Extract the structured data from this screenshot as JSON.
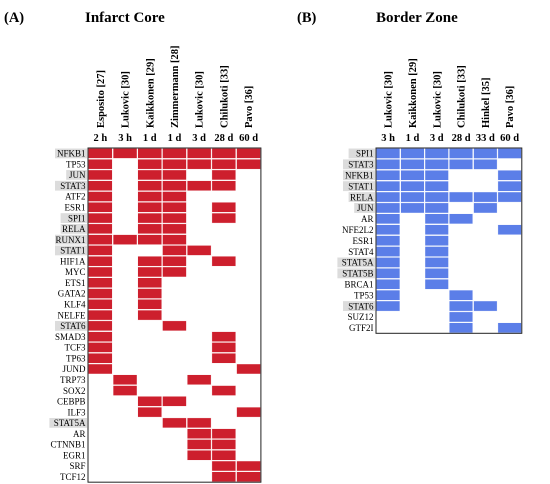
{
  "chart_data": [
    {
      "type": "heatmap",
      "panel": "(A)",
      "title": "Infarct Core",
      "color": "#cd1f2d",
      "rows": [
        "NFKB1",
        "TP53",
        "JUN",
        "STAT3",
        "ATF2",
        "ESR1",
        "SPI1",
        "RELA",
        "RUNX1",
        "STAT1",
        "HIF1A",
        "MYC",
        "ETS1",
        "GATA2",
        "KLF4",
        "NELFE",
        "STAT6",
        "SMAD3",
        "TCF3",
        "TP63",
        "JUND",
        "TRP73",
        "SOX2",
        "CEBPB",
        "ILF3",
        "STAT5A",
        "AR",
        "CTNNB1",
        "EGR1",
        "SRF",
        "TCF12"
      ],
      "highlighted_rows": [
        "NFKB1",
        "JUN",
        "STAT3",
        "SPI1",
        "RELA",
        "RUNX1",
        "STAT1",
        "STAT6",
        "STAT5A"
      ],
      "columns": [
        {
          "study": "Esposito [27]",
          "time": "2 h"
        },
        {
          "study": "Lukovic [30]",
          "time": "3 h"
        },
        {
          "study": "Kaikkonen [29]",
          "time": "1 d"
        },
        {
          "study": "Zimmermann [28]",
          "time": "1 d"
        },
        {
          "study": "Lukovic [30]",
          "time": "3 d"
        },
        {
          "study": "Chilukoti [33]",
          "time": "28 d"
        },
        {
          "study": "Pavo [36]",
          "time": "60 d"
        }
      ],
      "matrix": [
        [
          1,
          1,
          1,
          1,
          1,
          1,
          1
        ],
        [
          1,
          0,
          1,
          1,
          1,
          1,
          1
        ],
        [
          1,
          0,
          1,
          1,
          0,
          1,
          0
        ],
        [
          1,
          0,
          1,
          1,
          1,
          1,
          0
        ],
        [
          1,
          0,
          1,
          1,
          0,
          0,
          0
        ],
        [
          1,
          0,
          1,
          1,
          0,
          1,
          0
        ],
        [
          1,
          0,
          1,
          1,
          0,
          1,
          0
        ],
        [
          1,
          0,
          1,
          1,
          0,
          0,
          0
        ],
        [
          1,
          1,
          1,
          1,
          0,
          0,
          0
        ],
        [
          1,
          0,
          0,
          1,
          1,
          0,
          0
        ],
        [
          1,
          0,
          1,
          1,
          0,
          1,
          0
        ],
        [
          1,
          0,
          1,
          1,
          0,
          0,
          0
        ],
        [
          1,
          0,
          1,
          0,
          0,
          0,
          0
        ],
        [
          1,
          0,
          1,
          0,
          0,
          0,
          0
        ],
        [
          1,
          0,
          1,
          0,
          0,
          0,
          0
        ],
        [
          1,
          0,
          1,
          0,
          0,
          0,
          0
        ],
        [
          1,
          0,
          0,
          1,
          0,
          0,
          0
        ],
        [
          1,
          0,
          0,
          0,
          0,
          1,
          0
        ],
        [
          1,
          0,
          0,
          0,
          0,
          1,
          0
        ],
        [
          1,
          0,
          0,
          0,
          0,
          1,
          0
        ],
        [
          1,
          0,
          0,
          0,
          0,
          0,
          1
        ],
        [
          0,
          1,
          0,
          0,
          1,
          0,
          0
        ],
        [
          0,
          1,
          0,
          0,
          0,
          1,
          0
        ],
        [
          0,
          0,
          1,
          1,
          0,
          0,
          0
        ],
        [
          0,
          0,
          1,
          0,
          0,
          0,
          1
        ],
        [
          0,
          0,
          0,
          1,
          1,
          0,
          0
        ],
        [
          0,
          0,
          0,
          0,
          1,
          1,
          0
        ],
        [
          0,
          0,
          0,
          0,
          1,
          1,
          0
        ],
        [
          0,
          0,
          0,
          0,
          1,
          1,
          0
        ],
        [
          0,
          0,
          0,
          0,
          0,
          1,
          1
        ],
        [
          0,
          0,
          0,
          0,
          0,
          1,
          1
        ]
      ]
    },
    {
      "type": "heatmap",
      "panel": "(B)",
      "title": "Border Zone",
      "color": "#5b7ee8",
      "rows": [
        "SPI1",
        "STAT3",
        "NFKB1",
        "STAT1",
        "RELA",
        "JUN",
        "AR",
        "NFE2L2",
        "ESR1",
        "STAT4",
        "STAT5A",
        "STAT5B",
        "BRCA1",
        "TP53",
        "STAT6",
        "SUZ12",
        "GTF2I"
      ],
      "highlighted_rows": [
        "SPI1",
        "STAT3",
        "NFKB1",
        "STAT1",
        "RELA",
        "JUN",
        "STAT5A",
        "STAT5B",
        "STAT6"
      ],
      "columns": [
        {
          "study": "Lukovic [30]",
          "time": "3 h"
        },
        {
          "study": "Kaikkonen [29]",
          "time": "1 d"
        },
        {
          "study": "Lukovic [30]",
          "time": "3 d"
        },
        {
          "study": "Chilukoti [33]",
          "time": "28 d"
        },
        {
          "study": "Hinkel [35]",
          "time": "33 d"
        },
        {
          "study": "Pavo [36]",
          "time": "60 d"
        }
      ],
      "matrix": [
        [
          1,
          1,
          1,
          1,
          1,
          1
        ],
        [
          1,
          1,
          1,
          1,
          1,
          0
        ],
        [
          1,
          1,
          1,
          0,
          0,
          1
        ],
        [
          1,
          1,
          1,
          0,
          0,
          1
        ],
        [
          1,
          1,
          1,
          1,
          1,
          1
        ],
        [
          1,
          1,
          1,
          0,
          1,
          0
        ],
        [
          1,
          0,
          1,
          1,
          0,
          0
        ],
        [
          1,
          0,
          1,
          0,
          0,
          1
        ],
        [
          1,
          0,
          1,
          0,
          0,
          0
        ],
        [
          1,
          0,
          1,
          0,
          0,
          0
        ],
        [
          1,
          0,
          1,
          0,
          0,
          0
        ],
        [
          1,
          0,
          1,
          0,
          0,
          0
        ],
        [
          1,
          0,
          1,
          0,
          0,
          0
        ],
        [
          1,
          0,
          0,
          1,
          0,
          0
        ],
        [
          1,
          0,
          0,
          1,
          1,
          0
        ],
        [
          0,
          0,
          0,
          1,
          0,
          0
        ],
        [
          0,
          0,
          0,
          1,
          0,
          1
        ]
      ]
    }
  ]
}
